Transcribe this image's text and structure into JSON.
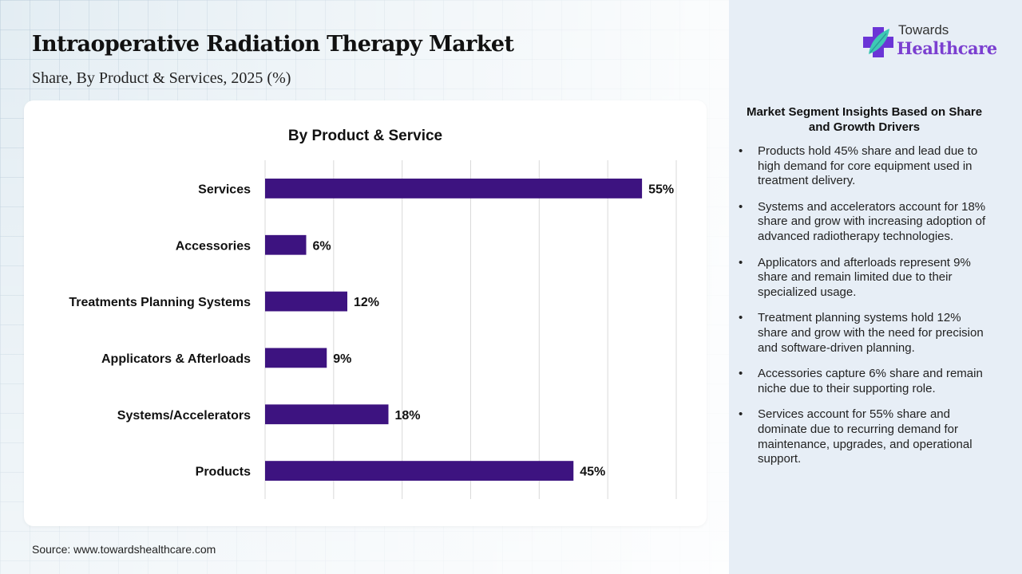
{
  "header": {
    "title": "Intraoperative Radiation Therapy Market",
    "subtitle": "Share, By Product & Services, 2025 (%)"
  },
  "logo": {
    "line1": "Towards",
    "line2": "Healthcare",
    "icon": "cross-leaf-icon",
    "brand_color": "#7b3fd0"
  },
  "chart_data": {
    "type": "bar",
    "orientation": "horizontal",
    "title": "By Product & Service",
    "categories": [
      "Services",
      "Accessories",
      "Treatments Planning Systems",
      "Applicators & Afterloads",
      "Systems/Accelerators",
      "Products"
    ],
    "values": [
      55,
      6,
      12,
      9,
      18,
      45
    ],
    "data_labels": [
      "55%",
      "6%",
      "12%",
      "9%",
      "18%",
      "45%"
    ],
    "unit": "%",
    "xlim": [
      0,
      60
    ],
    "grid_step": 10,
    "grid": true,
    "xlabel": "",
    "ylabel": "",
    "bar_color": "#3d1380",
    "legend": "none"
  },
  "insights": {
    "title": "Market Segment Insights Based on Share and Growth Drivers",
    "items": [
      "Products hold 45% share and lead due to high demand for core equipment used in treatment delivery.",
      "Systems and accelerators account for 18% share and grow with increasing adoption of advanced radiotherapy technologies.",
      "Applicators and afterloads represent 9% share and remain limited due to their specialized usage.",
      "Treatment planning systems hold 12% share and grow with the need for precision and software-driven planning.",
      "Accessories capture 6% share and remain niche due to their supporting role.",
      "Services account for 55% share and dominate due to recurring demand for maintenance, upgrades, and operational support."
    ]
  },
  "footer": {
    "source": "Source: www.towardshealthcare.com"
  }
}
